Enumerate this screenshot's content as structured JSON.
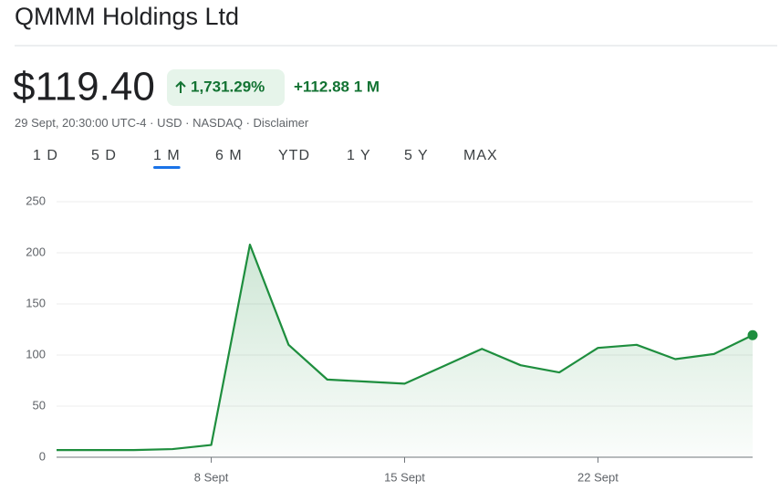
{
  "header": {
    "title": "QMMM Holdings Ltd",
    "price": "$119.40",
    "change_percent": "1,731.29%",
    "change_abs": "+112.88 1 M",
    "meta": "29 Sept, 20:30:00 UTC-4 · USD · NASDAQ · ",
    "disclaimer": "Disclaimer"
  },
  "tabs": {
    "items": [
      "1 D",
      "5 D",
      "1 M",
      "6 M",
      "YTD",
      "1 Y",
      "5 Y",
      "MAX"
    ],
    "selected": 2
  },
  "chart_data": {
    "type": "line",
    "color": "#1e8e3e",
    "categories": [
      null,
      null,
      null,
      null,
      "8 Sept",
      null,
      null,
      null,
      null,
      "15 Sept",
      null,
      null,
      null,
      null,
      "22 Sept",
      null,
      null,
      null,
      null
    ],
    "values": [
      7,
      7,
      7,
      8,
      12,
      208,
      110,
      76,
      74,
      72,
      89,
      106,
      90,
      83,
      107,
      110,
      96,
      101,
      119.4
    ],
    "ylim": [
      0,
      250
    ],
    "yticks": [
      0,
      50,
      100,
      150,
      200,
      250
    ],
    "grid": true
  }
}
